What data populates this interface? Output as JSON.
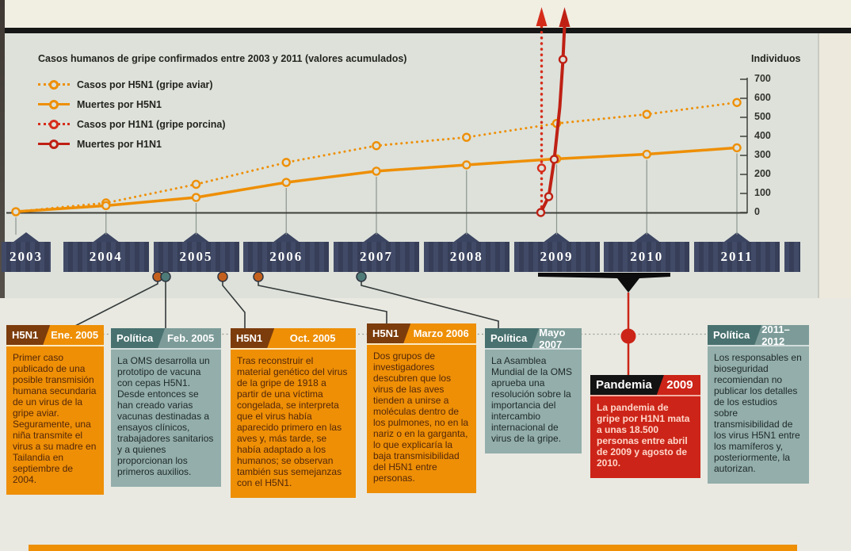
{
  "chart_data": {
    "type": "line",
    "title": "Casos humanos de gripe confirmados entre 2003 y 2011 (valores acumulados)",
    "ylabel": "Individuos",
    "ylim": [
      0,
      700
    ],
    "y_ticks": [
      700,
      600,
      500,
      400,
      300,
      200,
      100,
      0
    ],
    "x": [
      2003,
      2004,
      2005,
      2006,
      2007,
      2008,
      2009,
      2010,
      2011
    ],
    "series": [
      {
        "name": "Casos por H5N1 (gripe aviar)",
        "style": "dotted",
        "color": "#ee8f06",
        "values": [
          4,
          50,
          148,
          263,
          351,
          395,
          468,
          516,
          578
        ]
      },
      {
        "name": "Muertes por H5N1",
        "style": "solid",
        "color": "#ee8f06",
        "values": [
          4,
          36,
          79,
          158,
          217,
          250,
          282,
          306,
          340
        ]
      },
      {
        "name": "Casos por H1N1 (gripe porcina)",
        "style": "dotted",
        "color": "#d62d1b",
        "offscale": true,
        "start_year": 2009,
        "note": "sube verticalmente en 2009 y supera la escala (flecha hacia arriba)"
      },
      {
        "name": "Muertes por H1N1",
        "style": "solid",
        "color": "#bf2014",
        "offscale": true,
        "start_year": 2009,
        "visible_values": [
          0,
          85,
          280
        ],
        "note": "supera la escala en 2009 (flecha hacia arriba)"
      }
    ]
  },
  "timeline": {
    "years": [
      "2003",
      "2004",
      "2005",
      "2006",
      "2007",
      "2008",
      "2009",
      "2010",
      "2011"
    ]
  },
  "events": [
    {
      "category": "H5N1",
      "date": "Ene. 2005",
      "theme": "orange",
      "dot": "#c4601d",
      "body": "Primer caso publicado de una posible transmisión humana secundaria de un virus de la gripe aviar. Seguramente, una niña transmite el virus a su madre en Tailandia en septiembre de 2004."
    },
    {
      "category": "Política",
      "date": "Feb. 2005",
      "theme": "teal",
      "dot": "#4e7a78",
      "body": "La OMS desarrolla un prototipo de vacuna con cepas H5N1. Desde entonces se han creado varias vacunas destinadas a ensayos clínicos, trabajadores sanitarios y a quienes proporcionan los primeros auxilios."
    },
    {
      "category": "H5N1",
      "date": "Oct. 2005",
      "theme": "orange",
      "dot": "#c4601d",
      "body": "Tras reconstruir el material genético del virus de la gripe de 1918 a partir de una víctima congelada, se interpreta que el virus había aparecido primero en las aves y, más tarde, se había adaptado a los humanos; se observan también sus semejanzas con el H5N1."
    },
    {
      "category": "H5N1",
      "date": "Marzo 2006",
      "theme": "orange",
      "dot": "#c4601d",
      "body": "Dos grupos de investigadores descubren que los virus de las aves tienden a unirse a moléculas dentro de los pulmones, no en la nariz o en la garganta, lo que explicaría la baja transmisibilidad del H5N1 entre personas."
    },
    {
      "category": "Política",
      "date": "Mayo 2007",
      "theme": "teal",
      "dot": "#4e7a78",
      "body": "La Asamblea Mundial de la OMS aprueba una resolución sobre la importancia del intercambio internacional de virus de la gripe."
    },
    {
      "category": "Pandemia",
      "date": "2009",
      "theme": "red",
      "dot": "#cc2418",
      "body": "La pandemia de gripe por H1N1 mata a unas 18.500 personas entre abril de 2009 y agosto de 2010."
    },
    {
      "category": "Política",
      "date": "2011–2012",
      "theme": "teal",
      "dot": null,
      "body": "Los responsables en bioseguridad recomiendan no publicar los detalles de los estudios sobre transmisibilidad de los virus H5N1 entre los mamíferos y, posteriormente, la autorizan."
    }
  ]
}
